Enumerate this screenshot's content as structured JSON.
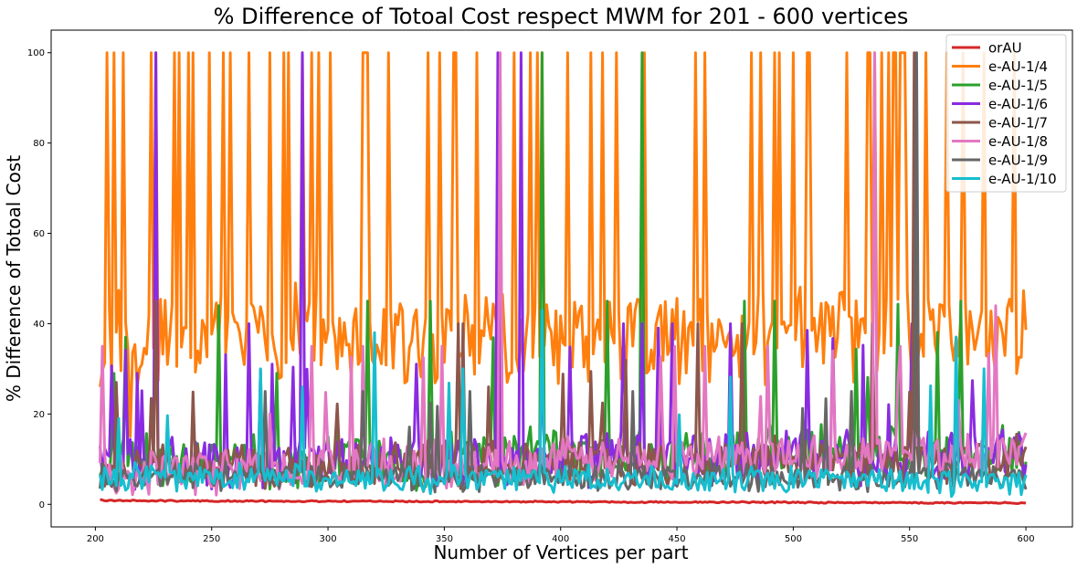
{
  "chart_data": {
    "type": "line",
    "title": "% Difference of Totoal Cost respect MWM for 201 - 600 vertices",
    "xlabel": "Number of Vertices per part",
    "ylabel": "% Difference of Totoal Cost",
    "xlim": [
      181,
      620
    ],
    "ylim": [
      -5,
      105
    ],
    "x_ticks": [
      200,
      250,
      300,
      350,
      400,
      450,
      500,
      550,
      600
    ],
    "y_ticks": [
      0,
      20,
      40,
      60,
      80,
      100
    ],
    "x_range": [
      202,
      600
    ],
    "grid": false,
    "legend_position": "top-right",
    "series": [
      {
        "name": "orAU",
        "color": "#d62728",
        "generator": {
          "base": 0.8,
          "end": 0.3,
          "noise": 0.15,
          "spikes": [
            [
              202,
              1.1
            ]
          ],
          "seed": 1
        }
      },
      {
        "name": "e-AU-1/4",
        "color": "#ff7f0e",
        "generator": {
          "base": 36,
          "end": 38,
          "noise": 10,
          "spike_prob": 0.16,
          "spike_val": 100,
          "spikes": [
            [
              202,
              26
            ],
            [
              215,
              15
            ],
            [
              286,
              49
            ],
            [
              303,
              37
            ]
          ],
          "seed": 2
        }
      },
      {
        "name": "e-AU-1/5",
        "color": "#2ca02c",
        "generator": {
          "base": 9,
          "end": 12,
          "noise": 6,
          "spike_prob": 0.05,
          "spike_val": 45,
          "spikes": [
            [
              208,
              29
            ],
            [
              213,
              37
            ],
            [
              253,
              44
            ],
            [
              392,
              100
            ],
            [
              435,
              100
            ]
          ],
          "seed": 3
        }
      },
      {
        "name": "e-AU-1/6",
        "color": "#8a2be2",
        "generator": {
          "base": 9,
          "end": 11,
          "noise": 6,
          "spike_prob": 0.06,
          "spike_val": 40,
          "spikes": [
            [
              226,
              100
            ],
            [
              289,
              100
            ],
            [
              373,
              100
            ],
            [
              383,
              100
            ]
          ],
          "seed": 4
        }
      },
      {
        "name": "e-AU-1/7",
        "color": "#8c564b",
        "generator": {
          "base": 8,
          "end": 10,
          "noise": 5,
          "spike_prob": 0.05,
          "spike_val": 40,
          "spikes": [
            [
              226,
              45
            ],
            [
              552,
              100
            ]
          ],
          "seed": 5
        }
      },
      {
        "name": "e-AU-1/8",
        "color": "#e377c2",
        "generator": {
          "base": 7,
          "end": 12,
          "noise": 5,
          "spike_prob": 0.04,
          "spike_val": 35,
          "spikes": [
            [
              374,
              100
            ],
            [
              535,
              100
            ],
            [
              587,
              44
            ]
          ],
          "seed": 6
        }
      },
      {
        "name": "e-AU-1/9",
        "color": "#666666",
        "generator": {
          "base": 6,
          "end": 6,
          "noise": 3,
          "spike_prob": 0.02,
          "spike_val": 25,
          "spikes": [
            [
              553,
              100
            ]
          ],
          "seed": 7
        }
      },
      {
        "name": "e-AU-1/10",
        "color": "#17becf",
        "generator": {
          "base": 6,
          "end": 5,
          "noise": 3,
          "spike_prob": 0.02,
          "spike_val": 30,
          "spikes": [
            [
              210,
              19
            ],
            [
              320,
              38
            ],
            [
              392,
              43
            ],
            [
              570,
              37
            ]
          ],
          "seed": 8
        }
      }
    ]
  }
}
